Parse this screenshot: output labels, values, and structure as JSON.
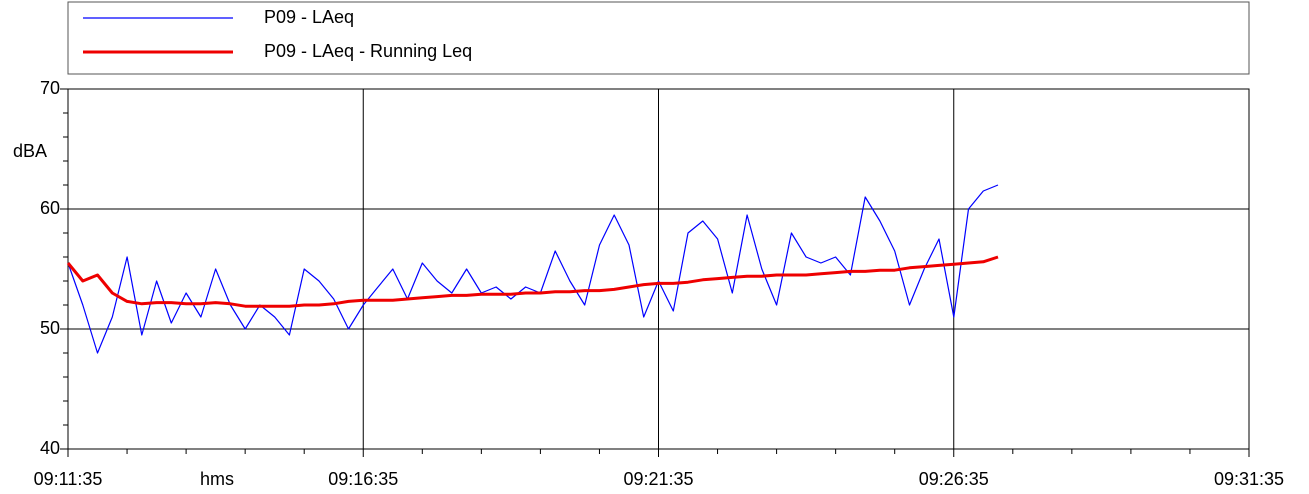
{
  "chart_data": {
    "type": "line",
    "xlabel": "hms",
    "ylabel": "dBA",
    "x": [
      "09:11:35",
      "09:11:50",
      "09:12:05",
      "09:12:20",
      "09:12:35",
      "09:12:50",
      "09:13:05",
      "09:13:20",
      "09:13:35",
      "09:13:50",
      "09:14:05",
      "09:14:20",
      "09:14:35",
      "09:14:50",
      "09:15:05",
      "09:15:20",
      "09:15:35",
      "09:15:50",
      "09:16:05",
      "09:16:20",
      "09:16:35",
      "09:16:50",
      "09:17:05",
      "09:17:20",
      "09:17:35",
      "09:17:50",
      "09:18:05",
      "09:18:20",
      "09:18:35",
      "09:18:50",
      "09:19:05",
      "09:19:20",
      "09:19:35",
      "09:19:50",
      "09:20:05",
      "09:20:20",
      "09:20:35",
      "09:20:50",
      "09:21:05",
      "09:21:20",
      "09:21:35",
      "09:21:50",
      "09:22:05",
      "09:22:20",
      "09:22:35",
      "09:22:50",
      "09:23:05",
      "09:23:20",
      "09:23:35",
      "09:23:50",
      "09:24:05",
      "09:24:20",
      "09:24:35",
      "09:24:50",
      "09:25:05",
      "09:25:20",
      "09:25:35",
      "09:25:50",
      "09:26:05",
      "09:26:20",
      "09:26:35",
      "09:26:50",
      "09:27:05",
      "09:27:20"
    ],
    "series": [
      {
        "name": "P09 - LAeq",
        "color": "#0000ff",
        "width": 1.2,
        "values": [
          55.5,
          52,
          48,
          51,
          56,
          49.5,
          54,
          50.5,
          53,
          51,
          55,
          52,
          50,
          52,
          51,
          49.5,
          55,
          54,
          52.5,
          50,
          52,
          53.5,
          55,
          52.5,
          55.5,
          54,
          53,
          55,
          53,
          53.5,
          52.5,
          53.5,
          53,
          56.5,
          54,
          52,
          57,
          59.5,
          57,
          51,
          54,
          51.5,
          58,
          59,
          57.5,
          53,
          59.5,
          55,
          52,
          58,
          56,
          55.5,
          56,
          54.5,
          61,
          59,
          56.5,
          52,
          55,
          57.5,
          51,
          60,
          61.5,
          62
        ]
      },
      {
        "name": "P09 - LAeq - Running Leq",
        "color": "#ee0000",
        "width": 3,
        "values": [
          55.5,
          54,
          54.5,
          53,
          52.3,
          52.1,
          52.2,
          52.2,
          52.1,
          52.1,
          52.2,
          52.1,
          51.9,
          51.9,
          51.9,
          51.9,
          52,
          52,
          52.1,
          52.3,
          52.4,
          52.4,
          52.4,
          52.5,
          52.6,
          52.7,
          52.8,
          52.8,
          52.9,
          52.9,
          52.9,
          53,
          53,
          53.1,
          53.1,
          53.2,
          53.2,
          53.3,
          53.5,
          53.7,
          53.8,
          53.8,
          53.9,
          54.1,
          54.2,
          54.3,
          54.4,
          54.4,
          54.5,
          54.5,
          54.5,
          54.6,
          54.7,
          54.8,
          54.8,
          54.9,
          54.9,
          55.1,
          55.2,
          55.3,
          55.4,
          55.5,
          55.6,
          56
        ]
      }
    ],
    "xlim": [
      "09:11:35",
      "09:31:35"
    ],
    "xticks": [
      "09:11:35",
      "09:16:35",
      "09:21:35",
      "09:26:35",
      "09:31:35"
    ],
    "xminorticks": [
      "09:12:35",
      "09:13:35",
      "09:14:35",
      "09:15:35",
      "09:17:35",
      "09:18:35",
      "09:19:35",
      "09:20:35",
      "09:22:35",
      "09:23:35",
      "09:24:35",
      "09:25:35",
      "09:27:35",
      "09:28:35",
      "09:29:35",
      "09:30:35"
    ],
    "ylim": [
      40,
      70
    ],
    "yticks": [
      40,
      50,
      60,
      70
    ],
    "yminorticks": [
      42,
      44,
      46,
      48,
      52,
      54,
      56,
      58,
      62,
      64,
      66,
      68
    ],
    "grid": true
  }
}
